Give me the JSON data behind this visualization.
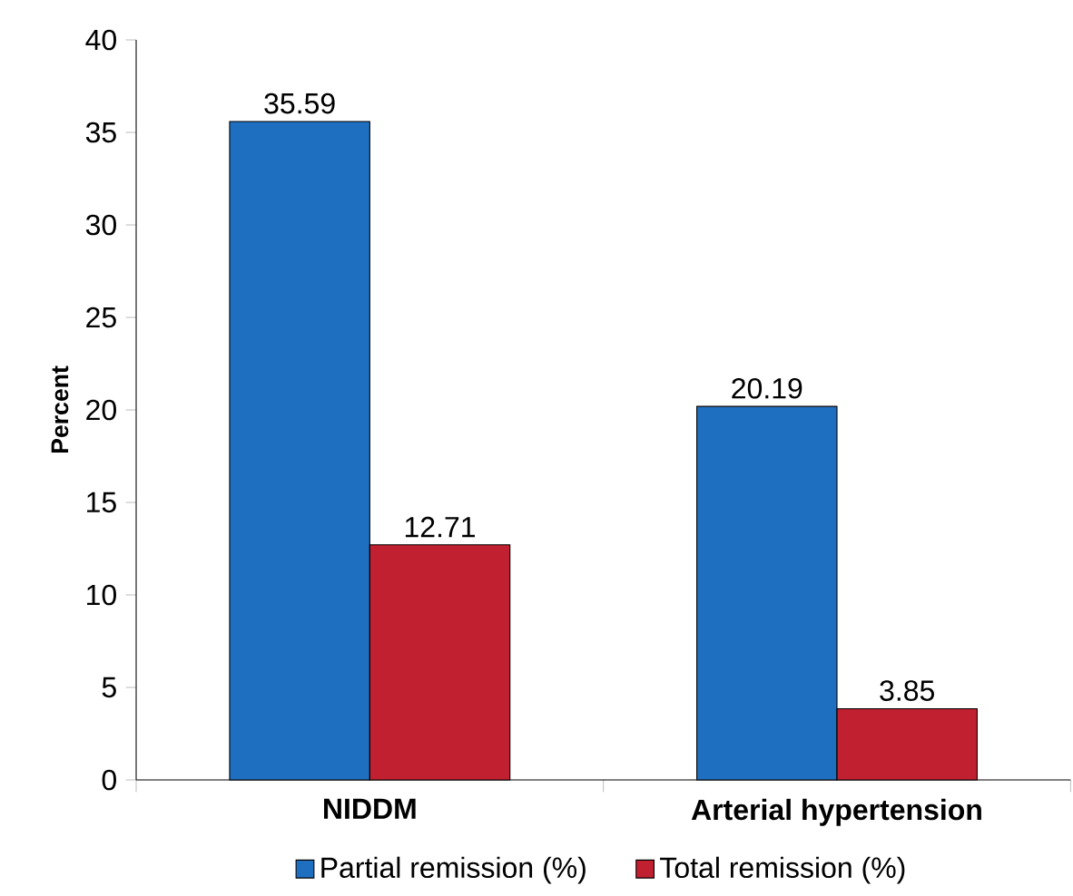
{
  "chart_data": {
    "type": "bar",
    "ylabel": "Percent",
    "categories": [
      "NIDDM",
      "Arterial hypertension"
    ],
    "series": [
      {
        "name": "Partial remission (%)",
        "color": "#1f6fc0",
        "values": [
          35.59,
          20.19
        ]
      },
      {
        "name": "Total remission (%)",
        "color": "#c0202f",
        "values": [
          12.71,
          3.85
        ]
      }
    ],
    "ylim": [
      0,
      40
    ],
    "yticks": [
      0,
      5,
      10,
      15,
      20,
      25,
      30,
      35,
      40
    ],
    "data_labels": true,
    "legend": "bottom",
    "grid": false
  }
}
